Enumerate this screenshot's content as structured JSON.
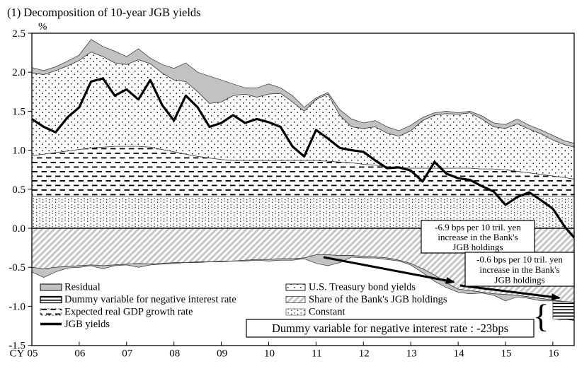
{
  "title": "(1) Decomposition of 10-year JGB yields",
  "axes": {
    "unit": "%",
    "x_prefix": "CY"
  },
  "legend": {
    "left": [
      {
        "label": "Residual"
      },
      {
        "label": "Dummy variable for negative interest rate"
      },
      {
        "label": "Expected real GDP growth rate"
      },
      {
        "label": "JGB yields"
      }
    ],
    "right": [
      {
        "label": "U.S. Treasury bond yields"
      },
      {
        "label": "Share of the Bank's JGB holdings"
      },
      {
        "label": "Constant"
      }
    ]
  },
  "annotations": {
    "box1": {
      "line1": "-6.9 bps per 10 tril. yen",
      "line2": "increase in the Bank's",
      "line3": "JGB holdings"
    },
    "box2": {
      "line1": "-0.6 bps per 10 tril. yen",
      "line2": "increase in the Bank's",
      "line3": "JGB holdings"
    },
    "dummy_note": "Dummy variable for negative interest rate : -23bps",
    "brace": "{"
  },
  "colors": {
    "residual_gray": "#c2c2c2",
    "hatch_gray": "#c6c6c6",
    "ink": "#000000"
  },
  "chart_data": {
    "type": "area",
    "title": "(1) Decomposition of 10-year JGB yields",
    "ylabel": "%",
    "ylim": [
      -1.5,
      2.5
    ],
    "grid": false,
    "legend_position": "bottom-inside",
    "y_ticks": [
      2.5,
      2.0,
      1.5,
      1.0,
      0.5,
      0.0,
      -0.5,
      -1.0,
      -1.5
    ],
    "x_tick_labels": [
      "05",
      "06",
      "07",
      "08",
      "09",
      "10",
      "11",
      "12",
      "13",
      "14",
      "15",
      "16"
    ],
    "x": [
      2005,
      2005.25,
      2005.5,
      2005.75,
      2006,
      2006.25,
      2006.5,
      2006.75,
      2007,
      2007.25,
      2007.5,
      2007.75,
      2008,
      2008.25,
      2008.5,
      2008.75,
      2009,
      2009.25,
      2009.5,
      2009.75,
      2010,
      2010.25,
      2010.5,
      2010.75,
      2011,
      2011.25,
      2011.5,
      2011.75,
      2012,
      2012.25,
      2012.5,
      2012.75,
      2013,
      2013.25,
      2013.5,
      2013.75,
      2014,
      2014.25,
      2014.5,
      2014.75,
      2015,
      2015.25,
      2015.5,
      2015.75,
      2016,
      2016.25,
      2016.45
    ],
    "series": {
      "constant_top": [
        0.41,
        0.41,
        0.41,
        0.41,
        0.41,
        0.41,
        0.41,
        0.41,
        0.41,
        0.41,
        0.41,
        0.41,
        0.41,
        0.41,
        0.41,
        0.41,
        0.41,
        0.41,
        0.41,
        0.41,
        0.41,
        0.41,
        0.41,
        0.41,
        0.41,
        0.41,
        0.41,
        0.41,
        0.41,
        0.41,
        0.41,
        0.41,
        0.41,
        0.41,
        0.41,
        0.41,
        0.41,
        0.41,
        0.41,
        0.41,
        0.41,
        0.41,
        0.41,
        0.41,
        0.41,
        0.41,
        0.41
      ],
      "gdp_top": [
        0.93,
        0.95,
        0.97,
        0.99,
        1.01,
        1.03,
        1.04,
        1.05,
        1.05,
        1.05,
        1.04,
        1.01,
        0.98,
        0.95,
        0.92,
        0.9,
        0.88,
        0.87,
        0.87,
        0.87,
        0.87,
        0.87,
        0.87,
        0.87,
        0.87,
        0.86,
        0.85,
        0.84,
        0.82,
        0.81,
        0.79,
        0.78,
        0.77,
        0.77,
        0.77,
        0.77,
        0.77,
        0.77,
        0.76,
        0.76,
        0.75,
        0.73,
        0.71,
        0.69,
        0.67,
        0.65,
        0.63
      ],
      "ust_top": [
        1.99,
        1.97,
        2.02,
        2.08,
        2.15,
        2.26,
        2.2,
        2.12,
        2.1,
        2.16,
        2.11,
        1.99,
        1.9,
        1.88,
        1.75,
        1.6,
        1.62,
        1.7,
        1.72,
        1.68,
        1.72,
        1.73,
        1.62,
        1.5,
        1.65,
        1.72,
        1.45,
        1.3,
        1.28,
        1.3,
        1.22,
        1.18,
        1.25,
        1.38,
        1.45,
        1.47,
        1.46,
        1.48,
        1.4,
        1.3,
        1.28,
        1.34,
        1.27,
        1.21,
        1.13,
        1.07,
        1.04
      ],
      "total_top": [
        2.06,
        2.02,
        2.07,
        2.14,
        2.22,
        2.42,
        2.33,
        2.27,
        2.2,
        2.3,
        2.18,
        2.1,
        2.05,
        2.12,
        2.0,
        1.95,
        1.9,
        1.85,
        1.8,
        1.8,
        1.85,
        1.8,
        1.7,
        1.55,
        1.67,
        1.74,
        1.52,
        1.4,
        1.35,
        1.38,
        1.3,
        1.25,
        1.32,
        1.42,
        1.48,
        1.5,
        1.48,
        1.5,
        1.44,
        1.35,
        1.33,
        1.4,
        1.32,
        1.26,
        1.19,
        1.12,
        1.09
      ],
      "boj_bottom": [
        -0.5,
        -0.52,
        -0.5,
        -0.49,
        -0.48,
        -0.47,
        -0.48,
        -0.47,
        -0.46,
        -0.45,
        -0.46,
        -0.45,
        -0.44,
        -0.44,
        -0.43,
        -0.43,
        -0.42,
        -0.42,
        -0.41,
        -0.4,
        -0.4,
        -0.39,
        -0.39,
        -0.38,
        -0.34,
        -0.34,
        -0.35,
        -0.35,
        -0.36,
        -0.37,
        -0.38,
        -0.41,
        -0.45,
        -0.52,
        -0.6,
        -0.7,
        -0.78,
        -0.8,
        -0.82,
        -0.84,
        -0.85,
        -0.86,
        -0.88,
        -0.9,
        -0.92,
        -0.94,
        -0.95
      ],
      "resid_neg_bottom": [
        -0.56,
        -0.63,
        -0.56,
        -0.51,
        -0.5,
        -0.48,
        -0.52,
        -0.48,
        -0.47,
        -0.5,
        -0.47,
        -0.46,
        -0.45,
        -0.44,
        -0.44,
        -0.43,
        -0.43,
        -0.42,
        -0.42,
        -0.41,
        -0.42,
        -0.41,
        -0.41,
        -0.39,
        -0.45,
        -0.48,
        -0.44,
        -0.37,
        -0.38,
        -0.38,
        -0.4,
        -0.42,
        -0.47,
        -0.57,
        -0.68,
        -0.76,
        -0.82,
        -0.84,
        -0.83,
        -0.86,
        -0.93,
        -0.88,
        -0.9,
        -0.93,
        -0.93,
        -0.95,
        -0.96
      ],
      "jgb": [
        1.4,
        1.3,
        1.23,
        1.42,
        1.55,
        1.88,
        1.92,
        1.7,
        1.78,
        1.65,
        1.9,
        1.58,
        1.38,
        1.7,
        1.55,
        1.3,
        1.35,
        1.45,
        1.35,
        1.4,
        1.36,
        1.3,
        1.05,
        0.92,
        1.26,
        1.15,
        1.03,
        1.0,
        0.98,
        0.87,
        0.77,
        0.78,
        0.74,
        0.6,
        0.85,
        0.7,
        0.64,
        0.62,
        0.54,
        0.47,
        0.3,
        0.4,
        0.46,
        0.36,
        0.25,
        0.02,
        -0.12
      ]
    },
    "dummy_band": {
      "x": [
        2016.0,
        2016.15,
        2016.3,
        2016.45
      ],
      "top": [
        -0.93,
        -0.94,
        -0.94,
        -0.95
      ],
      "bottom": [
        -1.16,
        -1.17,
        -1.17,
        -1.18
      ],
      "value_bps": -23
    }
  }
}
